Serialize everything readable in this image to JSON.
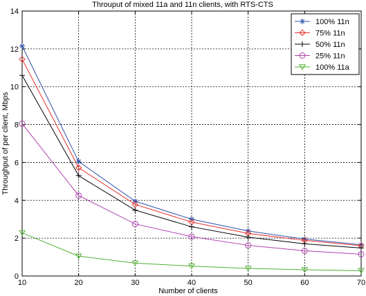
{
  "chart_data": {
    "type": "line",
    "title": "Throuput of mixed 11a and 11n clients, with RTS-CTS",
    "xlabel": "Number of clients",
    "ylabel": "Throughput of per client, Mbps",
    "x": [
      10,
      20,
      30,
      40,
      50,
      60,
      70
    ],
    "xlim": [
      10,
      70
    ],
    "ylim": [
      0,
      14
    ],
    "xticks": [
      10,
      20,
      30,
      40,
      50,
      60,
      70
    ],
    "yticks": [
      0,
      2,
      4,
      6,
      8,
      10,
      12,
      14
    ],
    "grid": true,
    "legend_position": "top-right",
    "series": [
      {
        "name": "100% 11n",
        "color": "#2f4fa8",
        "marker": "asterisk",
        "values": [
          12.15,
          6.05,
          3.95,
          3.0,
          2.38,
          1.95,
          1.65
        ]
      },
      {
        "name": "75% 11n",
        "color": "#e8302a",
        "marker": "diamond",
        "values": [
          11.45,
          5.72,
          3.78,
          2.85,
          2.25,
          1.88,
          1.6
        ]
      },
      {
        "name": "50% 11n",
        "color": "#000000",
        "marker": "plus",
        "values": [
          10.6,
          5.3,
          3.48,
          2.6,
          2.05,
          1.7,
          1.48
        ]
      },
      {
        "name": "25% 11n",
        "color": "#b040b0",
        "marker": "circle",
        "values": [
          8.05,
          4.25,
          2.75,
          2.08,
          1.62,
          1.33,
          1.15
        ]
      },
      {
        "name": "100% 11a",
        "color": "#50b030",
        "marker": "triangle-down",
        "values": [
          2.28,
          1.05,
          0.68,
          0.52,
          0.4,
          0.33,
          0.28
        ]
      }
    ]
  }
}
